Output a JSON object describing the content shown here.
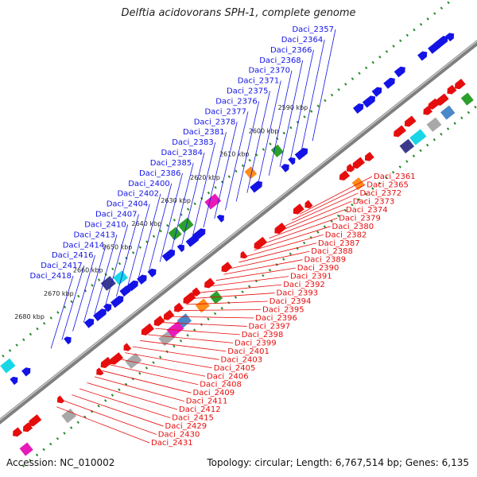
{
  "title": "Delftia acidovorans SPH-1, complete genome",
  "footer": {
    "accession": "Accession: NC_010002",
    "summary": "Topology: circular; Length: 6,767,514 bp; Genes: 6,135"
  },
  "colors": {
    "background": "#ffffff",
    "backbone": "#7f7f7f",
    "forward_strand": "#1313e6",
    "reverse_strand": "#e60d0d",
    "tick_dots": "#2a8a2a",
    "cog_palette": [
      "#19d6e6",
      "#3a3a8c",
      "#ff8c1a",
      "#2ca02c",
      "#a8a8a8",
      "#e81ab8",
      "#8ea43c",
      "#4a88c8"
    ]
  },
  "scale_ticks": [
    "2590 kbp",
    "2600 kbp",
    "2610 kbp",
    "2620 kbp",
    "2630 kbp",
    "2640 kbp",
    "2650 kbp",
    "2660 kbp",
    "2670 kbp",
    "2680 kbp"
  ],
  "forward_labels": [
    "Daci_2357",
    "Daci_2364",
    "Daci_2366",
    "Daci_2368",
    "Daci_2370",
    "Daci_2371",
    "Daci_2375",
    "Daci_2376",
    "Daci_2377",
    "Daci_2378",
    "Daci_2381",
    "Daci_2383",
    "Daci_2384",
    "Daci_2385",
    "Daci_2386",
    "Daci_2400",
    "Daci_2402",
    "Daci_2404",
    "Daci_2407",
    "Daci_2410",
    "Daci_2413",
    "Daci_2414",
    "Daci_2416",
    "Daci_2417",
    "Daci_2418"
  ],
  "reverse_labels": [
    "Daci_2361",
    "Daci_2365",
    "Daci_2372",
    "Daci_2373",
    "Daci_2374",
    "Daci_2379",
    "Daci_2380",
    "Daci_2382",
    "Daci_2387",
    "Daci_2388",
    "Daci_2389",
    "Daci_2390",
    "Daci_2391",
    "Daci_2392",
    "Daci_2393",
    "Daci_2394",
    "Daci_2395",
    "Daci_2396",
    "Daci_2397",
    "Daci_2398",
    "Daci_2399",
    "Daci_2401",
    "Daci_2403",
    "Daci_2405",
    "Daci_2406",
    "Daci_2408",
    "Daci_2409",
    "Daci_2411",
    "Daci_2412",
    "Daci_2415",
    "Daci_2429",
    "Daci_2430",
    "Daci_2431"
  ]
}
